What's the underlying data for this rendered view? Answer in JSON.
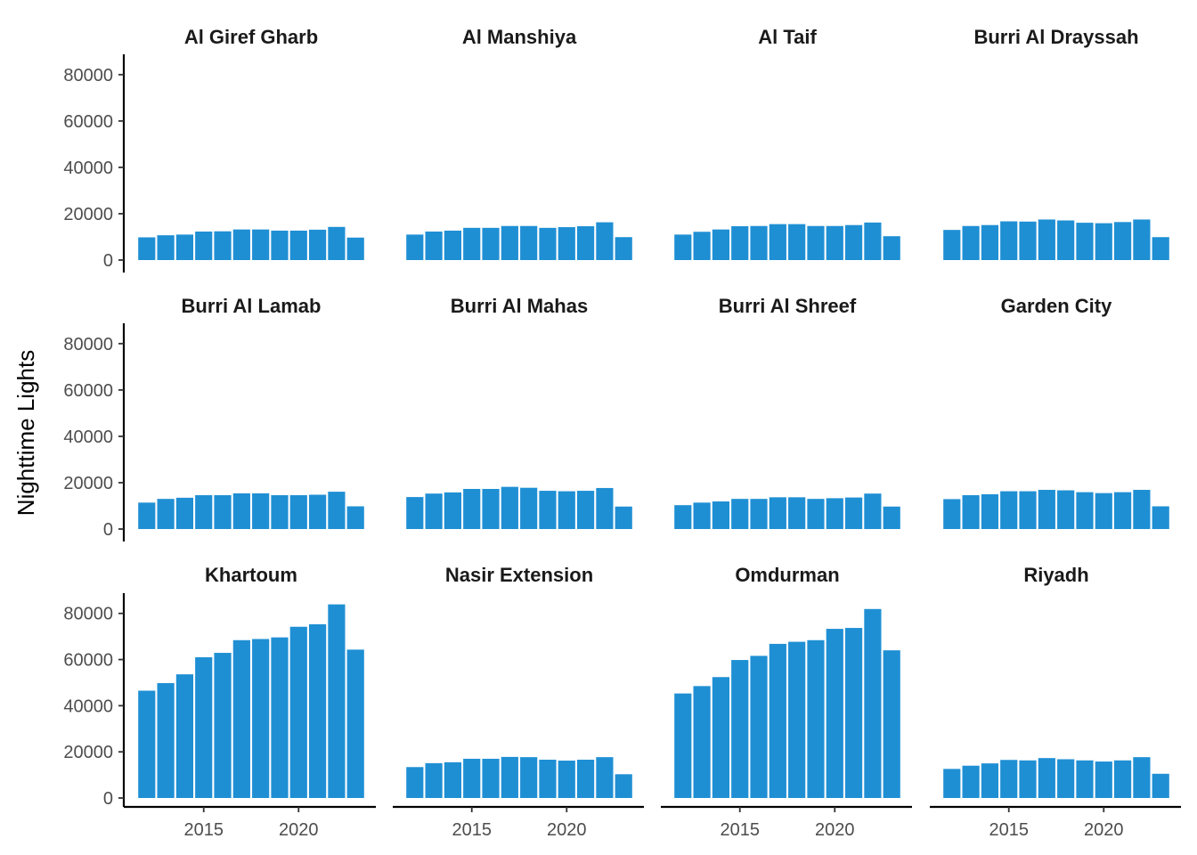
{
  "chart_data": {
    "type": "bar",
    "layout": "facet-grid",
    "ylabel": "Nighttime Lights",
    "xlabel": "",
    "ylim": [
      0,
      88000
    ],
    "yticks": [
      0,
      20000,
      40000,
      60000,
      80000
    ],
    "xticks": [
      2015,
      2020
    ],
    "xlim": [
      2011.4,
      2023.6
    ],
    "bar_color": "#1f8fd4",
    "columns": 4,
    "x": [
      2012,
      2013,
      2014,
      2015,
      2016,
      2017,
      2018,
      2019,
      2020,
      2021,
      2022,
      2023
    ],
    "panels": [
      {
        "title": "Al Giref Gharb",
        "values": [
          9800,
          10700,
          11000,
          12300,
          12400,
          13200,
          13200,
          12700,
          12700,
          13100,
          14300,
          9700
        ]
      },
      {
        "title": "Al Manshiya",
        "values": [
          11000,
          12300,
          12700,
          13900,
          13900,
          14700,
          14700,
          13900,
          14200,
          14600,
          16300,
          9900
        ]
      },
      {
        "title": "Al Taif",
        "values": [
          11000,
          12200,
          13200,
          14600,
          14700,
          15500,
          15500,
          14700,
          14700,
          15100,
          16200,
          10300
        ]
      },
      {
        "title": "Burri Al Drayssah",
        "values": [
          13000,
          14700,
          15100,
          16700,
          16600,
          17500,
          17100,
          16100,
          15900,
          16400,
          17500,
          9900
        ]
      },
      {
        "title": "Burri Al Lamab",
        "values": [
          11400,
          13000,
          13500,
          14600,
          14600,
          15400,
          15400,
          14600,
          14600,
          14800,
          16100,
          9800
        ]
      },
      {
        "title": "Burri Al Mahas",
        "values": [
          13800,
          15300,
          15800,
          17300,
          17300,
          18200,
          17800,
          16500,
          16300,
          16500,
          17700,
          9700
        ]
      },
      {
        "title": "Burri Al Shreef",
        "values": [
          10300,
          11400,
          11900,
          13000,
          13000,
          13700,
          13700,
          13000,
          13300,
          13600,
          15300,
          9700
        ]
      },
      {
        "title": "Garden City",
        "values": [
          12900,
          14600,
          15000,
          16300,
          16300,
          16900,
          16700,
          15900,
          15500,
          15900,
          16900,
          9800
        ]
      },
      {
        "title": "Khartoum",
        "values": [
          46500,
          49800,
          53600,
          61000,
          62900,
          68400,
          68900,
          69600,
          74200,
          75300,
          83900,
          64300
        ]
      },
      {
        "title": "Nasir Extension",
        "values": [
          13400,
          15100,
          15500,
          17000,
          17000,
          17800,
          17700,
          16600,
          16200,
          16600,
          17700,
          10300
        ]
      },
      {
        "title": "Omdurman",
        "values": [
          45300,
          48500,
          52400,
          59800,
          61600,
          66800,
          67700,
          68400,
          73300,
          73700,
          81900,
          64000
        ]
      },
      {
        "title": "Riyadh",
        "values": [
          12600,
          14000,
          15000,
          16500,
          16300,
          17300,
          16800,
          16300,
          15800,
          16300,
          17700,
          10500
        ]
      }
    ]
  }
}
